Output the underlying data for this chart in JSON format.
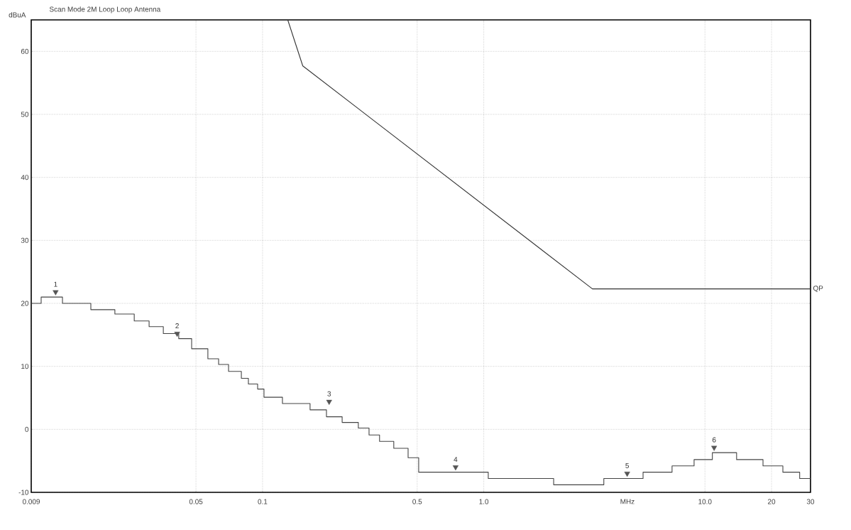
{
  "chart_data": {
    "type": "step",
    "title": "Scan Mode 2M Loop Loop Antenna",
    "xlabel": "MHz",
    "ylabel": "dBuA",
    "log": "x",
    "grid": true,
    "xlim": [
      0.009,
      30
    ],
    "ylim": [
      -10,
      65
    ],
    "xticks": [
      0.009,
      0.05,
      0.1,
      0.5,
      {
        "value": 1,
        "label": "1.0"
      },
      {
        "value": 10,
        "label": "10.0"
      },
      20,
      30
    ],
    "yticks": [
      -10,
      0,
      10,
      20,
      30,
      40,
      50,
      60
    ],
    "series": [
      {
        "name": "QP",
        "type": "line",
        "color": "#333333",
        "x": [
          0.13,
          0.152,
          3.1,
          30
        ],
        "values": [
          65,
          57.7,
          22.3,
          22.3
        ]
      },
      {
        "color": "#444444",
        "x": [
          0.009,
          0.00998,
          0.01246,
          0.01674,
          0.0215,
          0.0263,
          0.0307,
          0.0356,
          0.0418,
          0.0478,
          0.0566,
          0.0633,
          0.0702,
          0.0802,
          0.0863,
          0.095,
          0.1015,
          0.123,
          0.164,
          0.1945,
          0.229,
          0.271,
          0.303,
          0.338,
          0.392,
          0.455,
          0.508,
          1.048,
          2.07,
          3.49,
          5.25,
          7.1,
          8.93,
          10.8,
          13.9,
          18.3,
          22.5,
          26.8,
          30
        ],
        "values": [
          20,
          21,
          20,
          19,
          18.3,
          17.2,
          16.3,
          15.2,
          14.4,
          12.8,
          11.2,
          10.3,
          9.2,
          8.1,
          7.2,
          6.4,
          5.1,
          4.1,
          3.1,
          2,
          1.1,
          0.2,
          -0.9,
          -1.9,
          -3,
          -4.5,
          -6.8,
          -7.8,
          -8.8,
          -7.8,
          -6.8,
          -5.8,
          -4.8,
          -3.7,
          -4.8,
          -5.8,
          -6.8,
          -7.8,
          -7.8
        ]
      },
      {
        "type": "scatter",
        "marker": "triangle",
        "color": "#555555",
        "x": [
          0.0116,
          0.0411,
          0.2,
          0.746,
          4.45,
          11.0
        ],
        "values": [
          21.8,
          15.2,
          4.4,
          -6.0,
          -7.0,
          -2.9
        ]
      }
    ],
    "annotations": [
      {
        "text": "1",
        "x": 0.0116,
        "y": 21.8
      },
      {
        "text": "2",
        "x": 0.0411,
        "y": 15.2
      },
      {
        "text": "3",
        "x": 0.2,
        "y": 4.4
      },
      {
        "text": "4",
        "x": 0.746,
        "y": -6.0
      },
      {
        "text": "5",
        "x": 4.45,
        "y": -7.0
      },
      {
        "text": "6",
        "x": 11.0,
        "y": -2.9
      }
    ]
  }
}
